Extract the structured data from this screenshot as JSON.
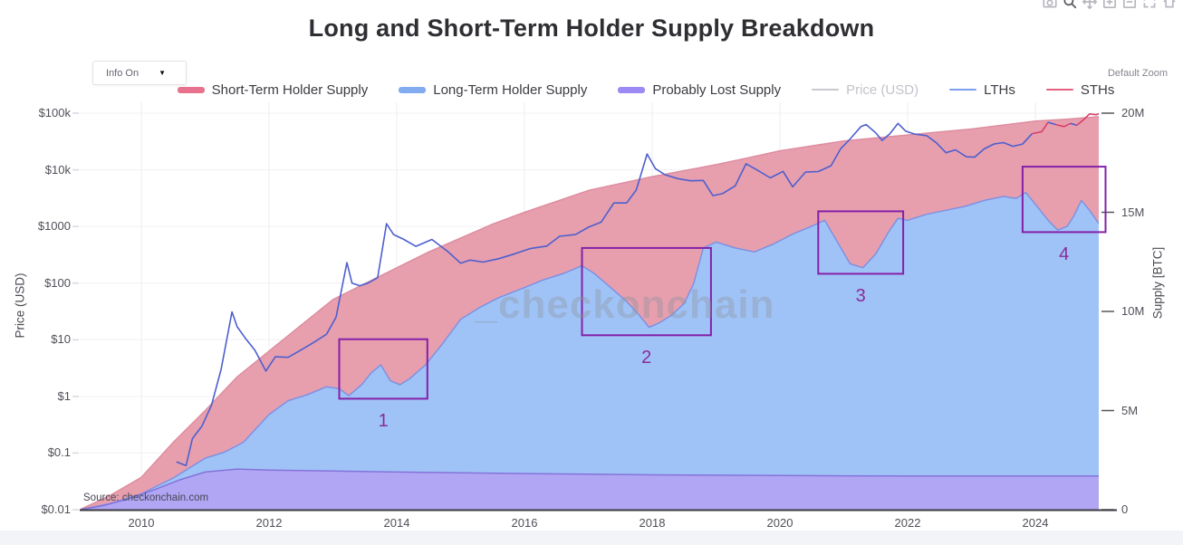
{
  "page": {
    "title": "Long and Short-Term Holder Supply Breakdown"
  },
  "controls": {
    "info_dropdown": "Info On",
    "default_zoom": "Default Zoom"
  },
  "toolbar": {
    "icons": [
      "camera-icon",
      "zoom-icon",
      "pan-icon",
      "zoom-in-icon",
      "zoom-out-icon",
      "autoscale-icon",
      "reset-axes-icon"
    ]
  },
  "watermark": "_checkonchain",
  "source": "Source: checkonchain.com",
  "legend": {
    "items": [
      {
        "label": "Short-Term Holder Supply",
        "swatch": "area",
        "color": "#e8718d",
        "muted": false
      },
      {
        "label": "Long-Term Holder Supply",
        "swatch": "area",
        "color": "#82abf0",
        "muted": false
      },
      {
        "label": "Probably Lost Supply",
        "swatch": "area",
        "color": "#9c89f3",
        "muted": false
      },
      {
        "label": "Price (USD)",
        "swatch": "line",
        "color": "#c9c9cf",
        "muted": true
      },
      {
        "label": "LTHs",
        "swatch": "line",
        "color": "#7c9ef0",
        "muted": false
      },
      {
        "label": "STHs",
        "swatch": "line",
        "color": "#e56180",
        "muted": false
      }
    ]
  },
  "chart_data": {
    "type": "area",
    "title": "Long and Short-Term Holder Supply Breakdown",
    "price_axis": {
      "title": "Price (USD)",
      "scale": "log",
      "ticks": [
        {
          "label": "$100k",
          "usd": 100000
        },
        {
          "label": "$10k",
          "usd": 10000
        },
        {
          "label": "$1000",
          "usd": 1000
        },
        {
          "label": "$100",
          "usd": 100
        },
        {
          "label": "$10",
          "usd": 10
        },
        {
          "label": "$1",
          "usd": 1
        },
        {
          "label": "$0.1",
          "usd": 0.1
        },
        {
          "label": "$0.01",
          "usd": 0.01
        }
      ],
      "range_usd": [
        0.01,
        100000
      ]
    },
    "supply_axis": {
      "title": "Supply [BTC]",
      "ticks": [
        {
          "label": "20M",
          "m": 20
        },
        {
          "label": "15M",
          "m": 15
        },
        {
          "label": "10M",
          "m": 10
        },
        {
          "label": "5M",
          "m": 5
        },
        {
          "label": "0",
          "m": 0
        }
      ],
      "range_btc_millions": [
        0,
        20.57
      ]
    },
    "x_axis": {
      "ticks": [
        2010,
        2012,
        2014,
        2016,
        2018,
        2020,
        2022,
        2024
      ],
      "range_years": [
        2009.05,
        2025.0
      ]
    },
    "areas": [
      {
        "name": "Short-Term Holder Supply",
        "curve": "total_supply",
        "fill": "#e79fae",
        "stroke": "#de8da0",
        "opacity": 1
      },
      {
        "name": "Long-Term Holder Supply",
        "curve": "lth_plus_lost",
        "fill": "#a0c3f7",
        "stroke": "#7e91e2",
        "opacity": 1
      },
      {
        "name": "Probably Lost Supply",
        "curve": "lost",
        "fill": "#b2a3f3",
        "stroke": "#8473da",
        "opacity": 0.9
      }
    ],
    "curves_millions_btc": {
      "total_supply": {
        "x": [
          2009.05,
          2009.5,
          2010,
          2010.5,
          2011,
          2011.5,
          2012,
          2012.5,
          2013,
          2013.5,
          2014,
          2014.5,
          2015,
          2015.5,
          2016,
          2016.5,
          2017,
          2017.5,
          2018,
          2018.5,
          2019,
          2019.5,
          2020,
          2020.5,
          2021,
          2021.5,
          2022,
          2022.5,
          2023,
          2023.5,
          2024,
          2024.5,
          2025.0
        ],
        "y": [
          0.02,
          0.7,
          1.63,
          3.4,
          5.0,
          6.7,
          8.0,
          9.3,
          10.6,
          11.4,
          12.2,
          13.0,
          13.7,
          14.4,
          15.0,
          15.55,
          16.1,
          16.45,
          16.8,
          17.1,
          17.4,
          17.75,
          18.1,
          18.35,
          18.6,
          18.75,
          18.9,
          19.05,
          19.2,
          19.4,
          19.6,
          19.7,
          19.82
        ]
      },
      "lth_plus_lost": {
        "x": [
          2009.05,
          2009.5,
          2010,
          2010.5,
          2011,
          2011.3,
          2011.6,
          2012,
          2012.3,
          2012.6,
          2012.9,
          2013.1,
          2013.25,
          2013.45,
          2013.6,
          2013.75,
          2013.9,
          2014.05,
          2014.2,
          2014.45,
          2014.7,
          2015,
          2015.3,
          2015.6,
          2016,
          2016.3,
          2016.6,
          2016.9,
          2017.1,
          2017.35,
          2017.6,
          2017.8,
          2017.95,
          2018.1,
          2018.3,
          2018.5,
          2018.65,
          2018.8,
          2019,
          2019.3,
          2019.6,
          2019.9,
          2020.2,
          2020.5,
          2020.7,
          2020.9,
          2021.1,
          2021.3,
          2021.5,
          2021.7,
          2021.85,
          2022,
          2022.3,
          2022.6,
          2022.9,
          2023.2,
          2023.5,
          2023.7,
          2023.85,
          2024,
          2024.2,
          2024.35,
          2024.5,
          2024.6,
          2024.72,
          2024.85,
          2025.0
        ],
        "y": [
          0.01,
          0.3,
          0.8,
          1.6,
          2.6,
          2.9,
          3.4,
          4.8,
          5.5,
          5.8,
          6.2,
          6.1,
          5.75,
          6.3,
          6.9,
          7.3,
          6.5,
          6.3,
          6.6,
          7.3,
          8.3,
          9.6,
          10.2,
          10.7,
          11.2,
          11.6,
          11.9,
          12.3,
          11.9,
          11.2,
          10.5,
          9.8,
          9.2,
          9.4,
          9.8,
          10.4,
          11.4,
          13.2,
          13.5,
          13.2,
          13.0,
          13.4,
          13.9,
          14.3,
          14.6,
          13.5,
          12.4,
          12.2,
          12.9,
          14.0,
          14.7,
          14.6,
          14.9,
          15.1,
          15.3,
          15.6,
          15.8,
          15.7,
          16.0,
          15.4,
          14.6,
          14.1,
          14.3,
          14.8,
          15.6,
          15.1,
          14.4
        ]
      },
      "lost": {
        "x": [
          2009.05,
          2009.4,
          2009.8,
          2010.2,
          2010.6,
          2011,
          2011.5,
          2012,
          2013,
          2014,
          2015,
          2016,
          2017,
          2018,
          2019,
          2020,
          2021,
          2022,
          2023,
          2024,
          2025.0
        ],
        "y": [
          0.005,
          0.2,
          0.55,
          1.0,
          1.5,
          1.9,
          2.05,
          2.0,
          1.95,
          1.9,
          1.86,
          1.82,
          1.79,
          1.76,
          1.74,
          1.72,
          1.71,
          1.7,
          1.7,
          1.7,
          1.7
        ]
      }
    },
    "price_usd": {
      "x": [
        2010.55,
        2010.7,
        2010.8,
        2010.95,
        2011.1,
        2011.25,
        2011.42,
        2011.5,
        2011.62,
        2011.78,
        2011.95,
        2012.1,
        2012.3,
        2012.5,
        2012.7,
        2012.9,
        2013.05,
        2013.22,
        2013.3,
        2013.42,
        2013.55,
        2013.7,
        2013.84,
        2013.95,
        2014.1,
        2014.3,
        2014.55,
        2014.8,
        2015.0,
        2015.15,
        2015.35,
        2015.6,
        2015.85,
        2016.1,
        2016.35,
        2016.55,
        2016.8,
        2017.0,
        2017.2,
        2017.4,
        2017.6,
        2017.75,
        2017.92,
        2018.05,
        2018.2,
        2018.4,
        2018.6,
        2018.8,
        2018.95,
        2019.1,
        2019.3,
        2019.47,
        2019.65,
        2019.85,
        2020.05,
        2020.2,
        2020.4,
        2020.6,
        2020.8,
        2020.95,
        2021.1,
        2021.27,
        2021.35,
        2021.5,
        2021.6,
        2021.72,
        2021.85,
        2021.97,
        2022.1,
        2022.3,
        2022.45,
        2022.6,
        2022.75,
        2022.92,
        2023.05,
        2023.2,
        2023.35,
        2023.5,
        2023.65,
        2023.8,
        2023.95,
        2024.1,
        2024.2,
        2024.32,
        2024.45,
        2024.55,
        2024.65,
        2024.75,
        2024.85,
        2024.95,
        2025.05
      ],
      "y": [
        0.07,
        0.06,
        0.18,
        0.3,
        0.7,
        3,
        31,
        17,
        11,
        6.5,
        2.8,
        5,
        4.9,
        6.6,
        9,
        12.5,
        25,
        230,
        100,
        90,
        100,
        125,
        1120,
        720,
        600,
        445,
        590,
        360,
        225,
        255,
        235,
        270,
        330,
        410,
        450,
        670,
        720,
        970,
        1190,
        2600,
        2600,
        4400,
        19000,
        10500,
        8200,
        7000,
        6400,
        6500,
        3500,
        3800,
        5200,
        12800,
        9800,
        7200,
        9400,
        5000,
        9100,
        9300,
        11800,
        23500,
        35000,
        58000,
        63000,
        45000,
        33000,
        43000,
        66000,
        48000,
        43000,
        40000,
        30000,
        20000,
        22500,
        17000,
        16700,
        23500,
        28500,
        30200,
        26000,
        28500,
        43500,
        47000,
        69000,
        63000,
        58000,
        66000,
        61000,
        76000,
        97000,
        94000,
        102000
      ],
      "segments": [
        {
          "until": 2023.98,
          "color": "#4d5fce",
          "name": "LTHs"
        },
        {
          "until": 2024.15,
          "color": "#d84069",
          "name": "STHs"
        },
        {
          "until": 2024.38,
          "color": "#4d5fce",
          "name": "LTHs"
        },
        {
          "until": 2024.52,
          "color": "#d84069",
          "name": "STHs"
        },
        {
          "until": 2024.66,
          "color": "#4d5fce",
          "name": "LTHs"
        },
        {
          "until": 2025.1,
          "color": "#d84069",
          "name": "STHs"
        }
      ]
    },
    "annotations": [
      {
        "label": "1",
        "x0": 2013.1,
        "x1": 2014.48,
        "m0": 5.6,
        "m1": 8.6
      },
      {
        "label": "2",
        "x0": 2016.9,
        "x1": 2018.92,
        "m0": 8.8,
        "m1": 13.2
      },
      {
        "label": "3",
        "x0": 2020.6,
        "x1": 2021.93,
        "m0": 11.9,
        "m1": 15.05
      },
      {
        "label": "4",
        "x0": 2023.8,
        "x1": 2025.1,
        "m0": 14.0,
        "m1": 17.3
      }
    ],
    "grid": true,
    "legend_position": "top-center"
  }
}
